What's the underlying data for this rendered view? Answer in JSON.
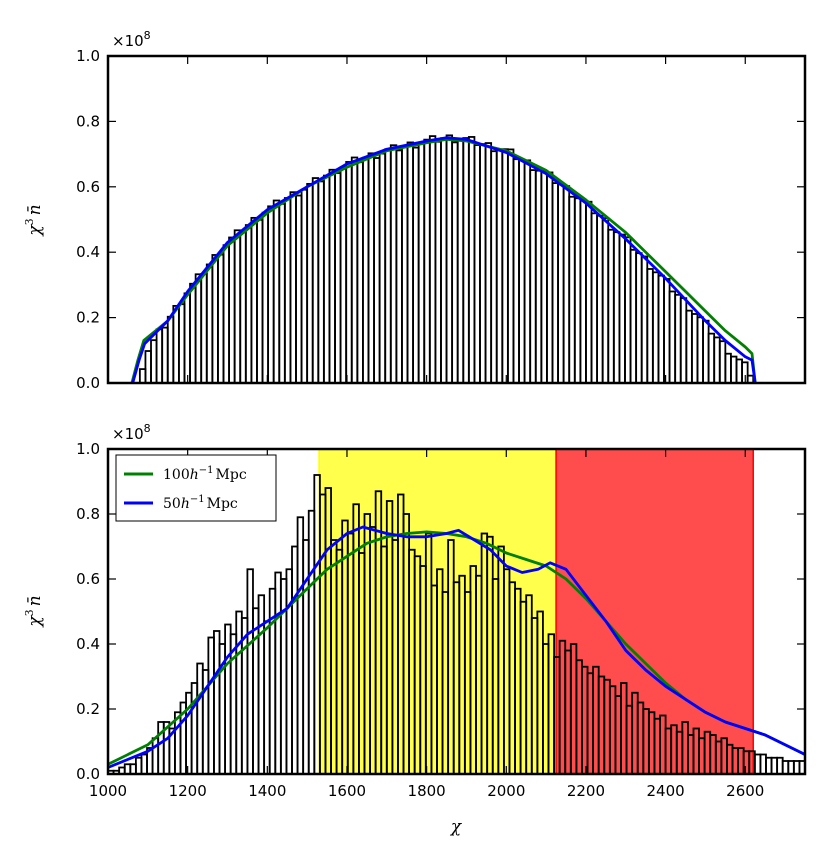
{
  "chart_data": [
    {
      "type": "histogram",
      "panel": "top",
      "xlabel": "",
      "ylabel": "χ³ n̄",
      "ylabel_parts": {
        "base": "χ",
        "sup": "3",
        "var": "n̄"
      },
      "offset_text": "×10⁸",
      "offset_parts": {
        "base": "×10",
        "sup": "8"
      },
      "xlim": [
        1000,
        2750
      ],
      "ylim": [
        0,
        1.0
      ],
      "yticks": [
        "0.0",
        "0.2",
        "0.4",
        "0.6",
        "0.8",
        "1.0"
      ],
      "grid": false,
      "hist": {
        "x_start": 1080,
        "x_end": 2620,
        "bins": 110,
        "knots": [
          [
            1080,
            0.03
          ],
          [
            1100,
            0.1
          ],
          [
            1150,
            0.19
          ],
          [
            1200,
            0.28
          ],
          [
            1300,
            0.43
          ],
          [
            1400,
            0.53
          ],
          [
            1500,
            0.6
          ],
          [
            1600,
            0.67
          ],
          [
            1700,
            0.71
          ],
          [
            1800,
            0.74
          ],
          [
            1850,
            0.75
          ],
          [
            1900,
            0.745
          ],
          [
            2000,
            0.71
          ],
          [
            2100,
            0.64
          ],
          [
            2200,
            0.55
          ],
          [
            2300,
            0.44
          ],
          [
            2400,
            0.31
          ],
          [
            2500,
            0.18
          ],
          [
            2550,
            0.11
          ],
          [
            2600,
            0.05
          ],
          [
            2620,
            0.02
          ]
        ]
      },
      "series": [
        {
          "name": "100h⁻¹Mpc",
          "color": "#008000",
          "points": [
            [
              1060,
              0.0
            ],
            [
              1075,
              0.07
            ],
            [
              1090,
              0.13
            ],
            [
              1150,
              0.19
            ],
            [
              1200,
              0.27
            ],
            [
              1300,
              0.42
            ],
            [
              1400,
              0.52
            ],
            [
              1500,
              0.6
            ],
            [
              1600,
              0.66
            ],
            [
              1700,
              0.71
            ],
            [
              1800,
              0.735
            ],
            [
              1850,
              0.745
            ],
            [
              1900,
              0.74
            ],
            [
              2000,
              0.71
            ],
            [
              2100,
              0.65
            ],
            [
              2200,
              0.56
            ],
            [
              2300,
              0.46
            ],
            [
              2400,
              0.34
            ],
            [
              2500,
              0.22
            ],
            [
              2550,
              0.16
            ],
            [
              2600,
              0.11
            ],
            [
              2617,
              0.09
            ],
            [
              2625,
              0.0
            ]
          ]
        },
        {
          "name": "50h⁻¹Mpc",
          "color": "#0000ff",
          "points": [
            [
              1062,
              0.0
            ],
            [
              1078,
              0.07
            ],
            [
              1092,
              0.12
            ],
            [
              1150,
              0.19
            ],
            [
              1200,
              0.28
            ],
            [
              1300,
              0.43
            ],
            [
              1400,
              0.53
            ],
            [
              1500,
              0.6
            ],
            [
              1600,
              0.67
            ],
            [
              1700,
              0.715
            ],
            [
              1800,
              0.74
            ],
            [
              1850,
              0.75
            ],
            [
              1900,
              0.745
            ],
            [
              2000,
              0.705
            ],
            [
              2100,
              0.64
            ],
            [
              2200,
              0.55
            ],
            [
              2300,
              0.44
            ],
            [
              2400,
              0.32
            ],
            [
              2500,
              0.19
            ],
            [
              2550,
              0.13
            ],
            [
              2600,
              0.08
            ],
            [
              2617,
              0.07
            ],
            [
              2625,
              0.0
            ]
          ]
        }
      ]
    },
    {
      "type": "histogram",
      "panel": "bottom",
      "xlabel": "χ",
      "ylabel": "χ³ n̄",
      "ylabel_parts": {
        "base": "χ",
        "sup": "3",
        "var": "n̄"
      },
      "offset_text": "×10⁸",
      "offset_parts": {
        "base": "×10",
        "sup": "8"
      },
      "xlim": [
        1000,
        2750
      ],
      "ylim": [
        0,
        1.0
      ],
      "xticks": [
        "1000",
        "1200",
        "1400",
        "1600",
        "1800",
        "2000",
        "2200",
        "2400",
        "2600"
      ],
      "yticks": [
        "0.0",
        "0.2",
        "0.4",
        "0.6",
        "0.8",
        "1.0"
      ],
      "grid": false,
      "bands": [
        {
          "x0": 1530,
          "x1": 2125,
          "color": "#ffff00"
        },
        {
          "x0": 2125,
          "x1": 2620,
          "color": "#ff0000"
        }
      ],
      "hist": {
        "x_start": 1000,
        "x_end": 2750,
        "bins": 125,
        "values": [
          0.01,
          0.01,
          0.02,
          0.03,
          0.03,
          0.05,
          0.06,
          0.08,
          0.11,
          0.16,
          0.16,
          0.14,
          0.19,
          0.22,
          0.25,
          0.28,
          0.34,
          0.32,
          0.42,
          0.44,
          0.4,
          0.46,
          0.43,
          0.5,
          0.48,
          0.63,
          0.51,
          0.55,
          0.47,
          0.57,
          0.62,
          0.6,
          0.63,
          0.7,
          0.79,
          0.72,
          0.81,
          0.92,
          0.86,
          0.88,
          0.72,
          0.69,
          0.78,
          0.74,
          0.83,
          0.68,
          0.8,
          0.76,
          0.87,
          0.7,
          0.84,
          0.72,
          0.86,
          0.8,
          0.69,
          0.67,
          0.64,
          0.74,
          0.58,
          0.63,
          0.56,
          0.72,
          0.59,
          0.61,
          0.56,
          0.64,
          0.61,
          0.74,
          0.73,
          0.6,
          0.7,
          0.63,
          0.59,
          0.57,
          0.53,
          0.55,
          0.48,
          0.5,
          0.4,
          0.43,
          0.36,
          0.41,
          0.38,
          0.4,
          0.35,
          0.33,
          0.31,
          0.33,
          0.3,
          0.29,
          0.27,
          0.24,
          0.28,
          0.21,
          0.25,
          0.22,
          0.2,
          0.19,
          0.17,
          0.18,
          0.14,
          0.15,
          0.13,
          0.16,
          0.12,
          0.14,
          0.11,
          0.13,
          0.12,
          0.1,
          0.11,
          0.09,
          0.08,
          0.08,
          0.07,
          0.07,
          0.06,
          0.06,
          0.05,
          0.05,
          0.05,
          0.04,
          0.04,
          0.04,
          0.04
        ]
      },
      "series": [
        {
          "name": "100h⁻¹Mpc",
          "legend_parts": {
            "num": "100",
            "h": "h",
            "sup": "−1",
            "unit": "Mpc"
          },
          "color": "#008000",
          "points": [
            [
              1000,
              0.03
            ],
            [
              1100,
              0.09
            ],
            [
              1200,
              0.2
            ],
            [
              1300,
              0.34
            ],
            [
              1400,
              0.45
            ],
            [
              1500,
              0.57
            ],
            [
              1550,
              0.63
            ],
            [
              1600,
              0.67
            ],
            [
              1650,
              0.71
            ],
            [
              1700,
              0.73
            ],
            [
              1750,
              0.74
            ],
            [
              1800,
              0.745
            ],
            [
              1850,
              0.74
            ],
            [
              1900,
              0.73
            ],
            [
              1950,
              0.71
            ],
            [
              2000,
              0.68
            ],
            [
              2050,
              0.66
            ],
            [
              2100,
              0.64
            ],
            [
              2150,
              0.6
            ],
            [
              2200,
              0.54
            ],
            [
              2250,
              0.47
            ],
            [
              2300,
              0.4
            ],
            [
              2350,
              0.34
            ],
            [
              2400,
              0.28
            ],
            [
              2450,
              0.23
            ],
            [
              2500,
              0.19
            ],
            [
              2550,
              0.16
            ],
            [
              2600,
              0.14
            ],
            [
              2650,
              0.12
            ],
            [
              2700,
              0.09
            ],
            [
              2750,
              0.06
            ]
          ]
        },
        {
          "name": "50h⁻¹Mpc",
          "legend_parts": {
            "num": "50",
            "h": "h",
            "sup": "−1",
            "unit": "Mpc"
          },
          "color": "#0000ff",
          "points": [
            [
              1000,
              0.02
            ],
            [
              1100,
              0.07
            ],
            [
              1150,
              0.11
            ],
            [
              1200,
              0.18
            ],
            [
              1250,
              0.27
            ],
            [
              1300,
              0.36
            ],
            [
              1350,
              0.43
            ],
            [
              1400,
              0.47
            ],
            [
              1450,
              0.51
            ],
            [
              1500,
              0.6
            ],
            [
              1550,
              0.69
            ],
            [
              1600,
              0.74
            ],
            [
              1640,
              0.76
            ],
            [
              1700,
              0.74
            ],
            [
              1750,
              0.73
            ],
            [
              1800,
              0.73
            ],
            [
              1850,
              0.74
            ],
            [
              1880,
              0.75
            ],
            [
              1920,
              0.72
            ],
            [
              1960,
              0.69
            ],
            [
              2000,
              0.64
            ],
            [
              2040,
              0.62
            ],
            [
              2080,
              0.63
            ],
            [
              2110,
              0.65
            ],
            [
              2150,
              0.63
            ],
            [
              2200,
              0.55
            ],
            [
              2250,
              0.47
            ],
            [
              2300,
              0.38
            ],
            [
              2350,
              0.32
            ],
            [
              2400,
              0.27
            ],
            [
              2450,
              0.23
            ],
            [
              2500,
              0.19
            ],
            [
              2550,
              0.16
            ],
            [
              2600,
              0.14
            ],
            [
              2650,
              0.12
            ],
            [
              2700,
              0.09
            ],
            [
              2750,
              0.06
            ]
          ]
        }
      ],
      "legend": {
        "placement": "upper-left"
      }
    }
  ]
}
